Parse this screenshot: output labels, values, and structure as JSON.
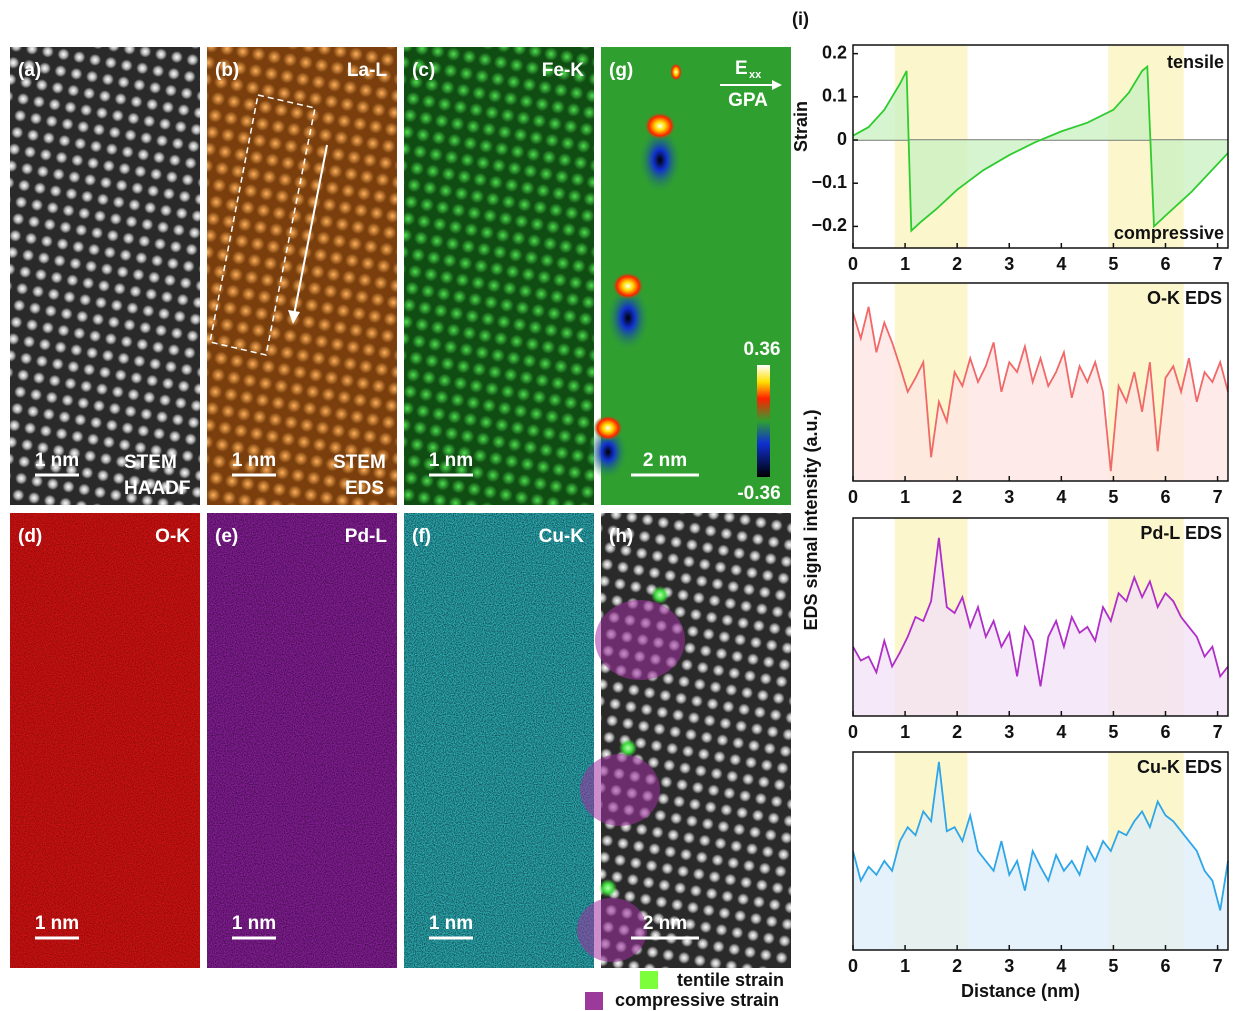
{
  "figure": {
    "label": "(i)",
    "eds_ylabel": "EDS signal intensity (a.u.)"
  },
  "panels": [
    {
      "label": "(a)",
      "scale": "1 nm",
      "caption": [
        "STEM",
        "HAADF"
      ]
    },
    {
      "label": "(b)",
      "element": "La-L",
      "scale": "1 nm",
      "caption": [
        "STEM",
        "EDS"
      ]
    },
    {
      "label": "(c)",
      "element": "Fe-K",
      "scale": "1 nm"
    },
    {
      "label": "(g)",
      "scale": "2 nm",
      "symbol": "E",
      "subscript": "xx",
      "method": "GPA",
      "cbar_max": "0.36",
      "cbar_min": "-0.36"
    },
    {
      "label": "(d)",
      "element": "O-K",
      "scale": "1 nm"
    },
    {
      "label": "(e)",
      "element": "Pd-L",
      "scale": "1 nm"
    },
    {
      "label": "(f)",
      "element": "Cu-K",
      "scale": "1 nm"
    },
    {
      "label": "(h)",
      "scale": "2 nm"
    }
  ],
  "legend": [
    "tentile strain",
    "compressive strain"
  ],
  "chart_data": [
    {
      "type": "line",
      "ylabel": "Strain",
      "annotations": [
        "tensile",
        "compressive"
      ],
      "x": [
        0,
        0.3,
        0.6,
        0.9,
        1.03,
        1.12,
        1.3,
        1.6,
        2,
        2.5,
        3,
        3.5,
        4,
        4.5,
        5,
        5.3,
        5.55,
        5.65,
        5.78,
        6,
        6.5,
        7.2
      ],
      "series": [
        {
          "color": "#2ecc2e",
          "fill": "#c8f0c0",
          "values": [
            0.01,
            0.03,
            0.07,
            0.13,
            0.16,
            -0.21,
            -0.19,
            -0.16,
            -0.115,
            -0.07,
            -0.035,
            -0.005,
            0.02,
            0.04,
            0.07,
            0.11,
            0.16,
            0.17,
            -0.2,
            -0.175,
            -0.12,
            -0.03
          ]
        }
      ],
      "highlight_ranges": [
        [
          0.8,
          2.2
        ],
        [
          4.9,
          6.35
        ]
      ],
      "highlight_color": "#fbf5c4",
      "zero_line": true,
      "xlim": [
        0,
        7.2
      ],
      "xticks": [
        0,
        1,
        2,
        3,
        4,
        5,
        6,
        7
      ],
      "ylim": [
        -0.25,
        0.22
      ],
      "yticks": [
        {
          "value": -0.2,
          "label": "−0.2"
        },
        {
          "value": -0.1,
          "label": "−0.1"
        },
        0,
        0.1,
        0.2
      ]
    },
    {
      "type": "line",
      "title": "O-K EDS",
      "x": [
        0,
        0.15,
        0.3,
        0.45,
        0.6,
        0.75,
        0.9,
        1.05,
        1.2,
        1.35,
        1.5,
        1.65,
        1.8,
        1.95,
        2.1,
        2.25,
        2.4,
        2.55,
        2.7,
        2.85,
        3,
        3.15,
        3.3,
        3.45,
        3.6,
        3.75,
        3.9,
        4.05,
        4.2,
        4.35,
        4.5,
        4.65,
        4.8,
        4.95,
        5.1,
        5.25,
        5.4,
        5.55,
        5.7,
        5.85,
        6,
        6.15,
        6.3,
        6.45,
        6.6,
        6.75,
        6.9,
        7.05,
        7.2
      ],
      "series": [
        {
          "color": "#f06868",
          "fill": "#fde4e2",
          "values": [
            85,
            72,
            88,
            65,
            80,
            70,
            58,
            45,
            52,
            60,
            12,
            40,
            30,
            55,
            48,
            62,
            50,
            58,
            70,
            45,
            60,
            55,
            68,
            50,
            62,
            48,
            55,
            65,
            42,
            58,
            50,
            60,
            45,
            5,
            48,
            40,
            55,
            35,
            60,
            15,
            52,
            58,
            45,
            62,
            40,
            55,
            50,
            60,
            45
          ]
        }
      ],
      "highlight_ranges": [
        [
          0.8,
          2.2
        ],
        [
          4.9,
          6.35
        ]
      ],
      "highlight_color": "#fbf5c4",
      "xlim": [
        0,
        7.2
      ],
      "xticks": [
        0,
        1,
        2,
        3,
        4,
        5,
        6,
        7
      ],
      "ylim": [
        0,
        100
      ]
    },
    {
      "type": "line",
      "title": "Pd-L EDS",
      "x": [
        0,
        0.15,
        0.3,
        0.45,
        0.6,
        0.75,
        0.9,
        1.05,
        1.2,
        1.35,
        1.5,
        1.65,
        1.8,
        1.95,
        2.1,
        2.25,
        2.4,
        2.55,
        2.7,
        2.85,
        3,
        3.15,
        3.3,
        3.45,
        3.6,
        3.75,
        3.9,
        4.05,
        4.2,
        4.35,
        4.5,
        4.65,
        4.8,
        4.95,
        5.1,
        5.25,
        5.4,
        5.55,
        5.7,
        5.85,
        6,
        6.15,
        6.3,
        6.45,
        6.6,
        6.75,
        6.9,
        7.05,
        7.2
      ],
      "series": [
        {
          "color": "#b02ec8",
          "fill": "#f2e0f5",
          "values": [
            35,
            28,
            30,
            22,
            38,
            25,
            32,
            40,
            50,
            48,
            58,
            90,
            55,
            52,
            60,
            45,
            55,
            40,
            48,
            35,
            42,
            20,
            45,
            38,
            15,
            40,
            48,
            35,
            50,
            42,
            45,
            38,
            55,
            48,
            62,
            58,
            70,
            60,
            68,
            55,
            62,
            58,
            50,
            45,
            40,
            30,
            35,
            20,
            25
          ]
        }
      ],
      "highlight_ranges": [
        [
          0.8,
          2.2
        ],
        [
          4.9,
          6.35
        ]
      ],
      "highlight_color": "#fbf5c4",
      "xlim": [
        0,
        7.2
      ],
      "xticks": [
        0,
        1,
        2,
        3,
        4,
        5,
        6,
        7
      ],
      "ylim": [
        0,
        100
      ]
    },
    {
      "type": "line",
      "title": "Cu-K EDS",
      "xlabel": "Distance (nm)",
      "x": [
        0,
        0.15,
        0.3,
        0.45,
        0.6,
        0.75,
        0.9,
        1.05,
        1.2,
        1.35,
        1.5,
        1.65,
        1.8,
        1.95,
        2.1,
        2.25,
        2.4,
        2.55,
        2.7,
        2.85,
        3,
        3.15,
        3.3,
        3.45,
        3.6,
        3.75,
        3.9,
        4.05,
        4.2,
        4.35,
        4.5,
        4.65,
        4.8,
        4.95,
        5.1,
        5.25,
        5.4,
        5.55,
        5.7,
        5.85,
        6,
        6.15,
        6.3,
        6.45,
        6.6,
        6.75,
        6.9,
        7.05,
        7.2
      ],
      "series": [
        {
          "color": "#2ea6e8",
          "fill": "#ddeefa",
          "values": [
            50,
            35,
            42,
            38,
            45,
            40,
            55,
            62,
            58,
            70,
            65,
            95,
            60,
            62,
            55,
            68,
            50,
            45,
            40,
            55,
            38,
            45,
            30,
            50,
            42,
            35,
            48,
            40,
            45,
            38,
            52,
            45,
            55,
            50,
            60,
            58,
            65,
            70,
            62,
            75,
            68,
            65,
            60,
            55,
            50,
            40,
            35,
            20,
            45
          ]
        }
      ],
      "highlight_ranges": [
        [
          0.8,
          2.2
        ],
        [
          4.9,
          6.35
        ]
      ],
      "highlight_color": "#fbf5c4",
      "xlim": [
        0,
        7.2
      ],
      "xticks": [
        0,
        1,
        2,
        3,
        4,
        5,
        6,
        7
      ],
      "ylim": [
        0,
        100
      ]
    }
  ]
}
